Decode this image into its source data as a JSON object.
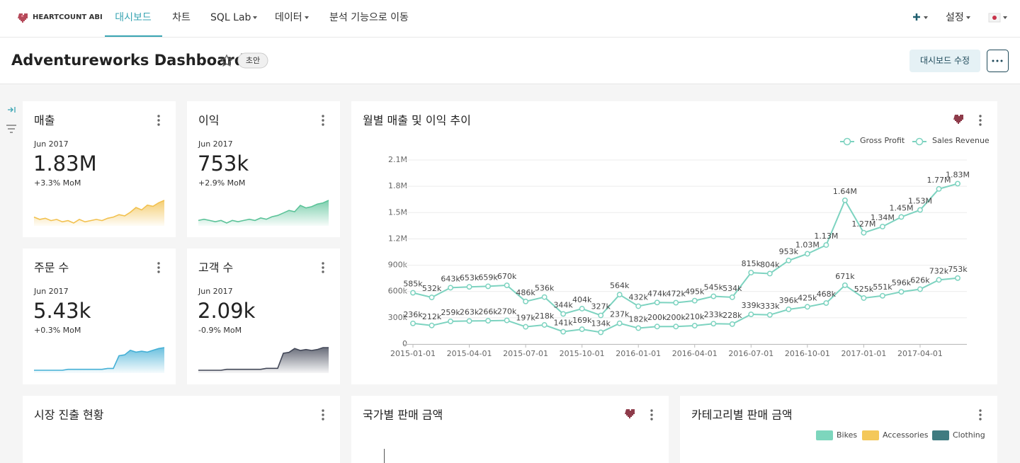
{
  "nav": {
    "logo": "HEARTCOUNT ABI",
    "menu": [
      "대시보드",
      "차트",
      "SQL Lab",
      "데이터",
      "분석 기능으로 이동"
    ],
    "settings": "설정"
  },
  "header": {
    "title": "Adventureworks Dashboard",
    "badge": "초안",
    "edit_button": "대시보드 수정"
  },
  "kpis": [
    {
      "title": "매출",
      "period": "Jun 2017",
      "value": "1.83M",
      "change": "+3.3% MoM",
      "color": "#f2c14e",
      "trend": [
        30,
        28,
        29,
        27,
        28,
        26,
        27,
        25,
        28,
        26,
        27,
        28,
        27,
        29,
        30,
        32,
        31,
        34,
        38,
        36,
        40,
        39,
        42,
        44
      ]
    },
    {
      "title": "이익",
      "period": "Jun 2017",
      "value": "753k",
      "change": "+2.9% MoM",
      "color": "#5cc399",
      "trend": [
        30,
        31,
        30,
        29,
        30,
        28,
        30,
        29,
        30,
        31,
        30,
        32,
        31,
        33,
        34,
        36,
        38,
        37,
        42,
        40,
        41,
        43,
        44,
        46
      ]
    },
    {
      "title": "주문 수",
      "period": "Jun 2017",
      "value": "5.43k",
      "change": "+0.3% MoM",
      "color": "#45b0d6",
      "trend": [
        10,
        10,
        10,
        10,
        10,
        10,
        11,
        11,
        11,
        11,
        11,
        11,
        11,
        12,
        12,
        26,
        27,
        32,
        30,
        31,
        30,
        32,
        34,
        35
      ]
    },
    {
      "title": "고객 수",
      "period": "Jun 2017",
      "value": "2.09k",
      "change": "-0.9% MoM",
      "color": "#434858",
      "trend": [
        10,
        10,
        10,
        10,
        10,
        11,
        11,
        11,
        11,
        11,
        11,
        11,
        12,
        12,
        12,
        28,
        29,
        33,
        31,
        32,
        31,
        32,
        34,
        34
      ]
    }
  ],
  "chart_data": {
    "type": "line",
    "title": "월별 매출 및 이익 추이",
    "categories": [
      "2015-01-01",
      null,
      null,
      "2015-04-01",
      null,
      null,
      "2015-07-01",
      null,
      null,
      "2015-10-01",
      null,
      null,
      "2016-01-01",
      null,
      null,
      "2016-04-01",
      null,
      null,
      "2016-07-01",
      null,
      null,
      "2016-10-01",
      null,
      null,
      "2017-01-01",
      null,
      null,
      "2017-04-01",
      null,
      null
    ],
    "series": [
      {
        "name": "Gross Profit",
        "color": "#7dd3c0",
        "values": [
          236000,
          212000,
          259000,
          263000,
          266000,
          270000,
          197000,
          218000,
          141000,
          169000,
          134000,
          237000,
          182000,
          200000,
          200000,
          210000,
          233000,
          228000,
          339000,
          333000,
          396000,
          425000,
          468000,
          671000,
          525000,
          551000,
          596000,
          626000,
          732000,
          753000
        ],
        "value_labels": [
          "236k",
          "212k",
          "259k",
          "263k",
          "266k",
          "270k",
          "197k",
          "218k",
          "141k",
          "169k",
          "134k",
          "237k",
          "182k",
          "200k",
          "200k",
          "210k",
          "233k",
          "228k",
          "339k",
          "333k",
          "396k",
          "425k",
          "468k",
          "671k",
          "525k",
          "551k",
          "596k",
          "626k",
          "732k",
          "753k"
        ]
      },
      {
        "name": "Sales Revenue",
        "color": "#7dd3c0",
        "values": [
          585000,
          532000,
          643000,
          653000,
          659000,
          670000,
          486000,
          536000,
          344000,
          404000,
          327000,
          564000,
          432000,
          474000,
          472000,
          495000,
          545000,
          534000,
          815000,
          804000,
          953000,
          1030000,
          1130000,
          1640000,
          1270000,
          1340000,
          1450000,
          1530000,
          1770000,
          1830000
        ],
        "value_labels": [
          "585k",
          "532k",
          "643k",
          "653k",
          "659k",
          "670k",
          "486k",
          "536k",
          "344k",
          "404k",
          "327k",
          "564k",
          "432k",
          "474k",
          "472k",
          "495k",
          "545k",
          "534k",
          "815k",
          "804k",
          "953k",
          "1.03M",
          "1.13M",
          "1.64M",
          "1.27M",
          "1.34M",
          "1.45M",
          "1.53M",
          "1.77M",
          "1.83M"
        ]
      }
    ],
    "ylim": [
      0,
      2100000
    ],
    "yticks": [
      0,
      {
        "value": 300000,
        "label": "300k"
      },
      {
        "value": 600000,
        "label": "600k"
      },
      {
        "value": 900000,
        "label": "900k"
      },
      {
        "value": 1200000,
        "label": "1.2M"
      },
      {
        "value": 1500000,
        "label": "1.5M"
      },
      {
        "value": 1800000,
        "label": "1.8M"
      },
      {
        "value": 2100000,
        "label": "2.1M"
      }
    ],
    "grid": true,
    "legend": "top-right"
  },
  "panels": [
    {
      "title": "시장 진출 현황"
    },
    {
      "title": "국가별 판매 금액"
    },
    {
      "title": "카테고리별 판매 금액",
      "legend": [
        {
          "name": "Bikes",
          "color": "#7dd6bd"
        },
        {
          "name": "Accessories",
          "color": "#f4c85a"
        },
        {
          "name": "Clothing",
          "color": "#3f7b80"
        }
      ]
    }
  ]
}
